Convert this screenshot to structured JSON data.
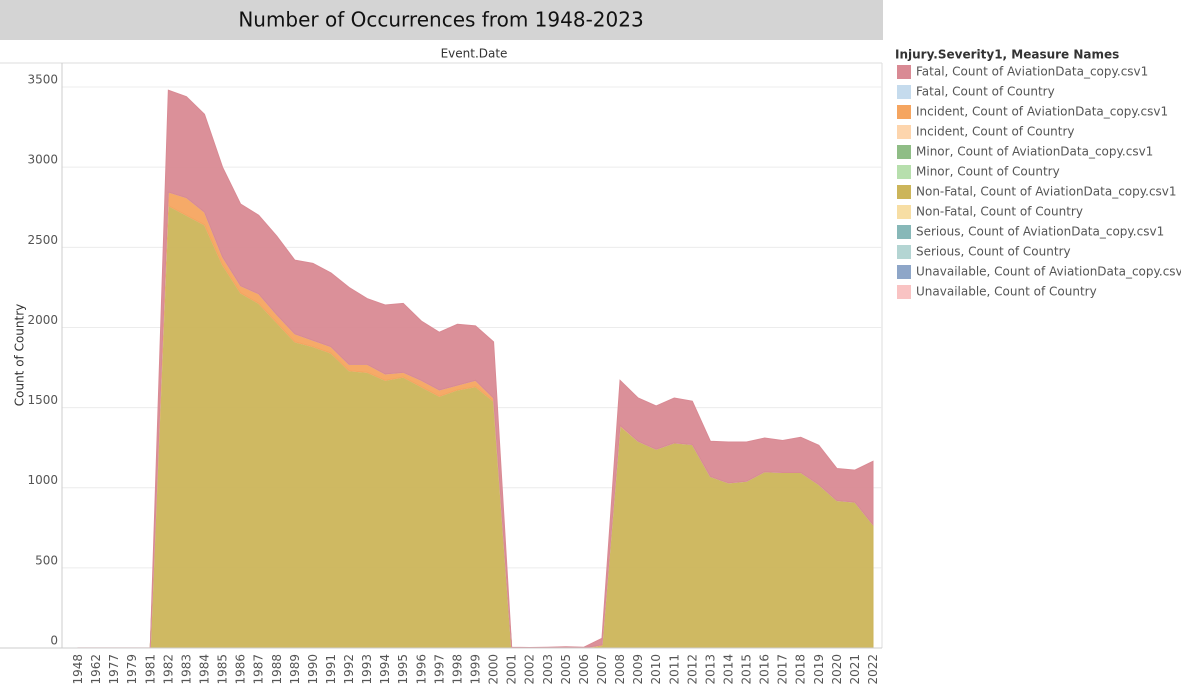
{
  "chart_data": {
    "type": "stacked-area",
    "title": "Number of Occurrences from 1948-2023",
    "header": "Event.Date",
    "y_label": "Count of Country",
    "legend_title": "Injury.Severity1, Measure Names",
    "categories": [
      "1948",
      "1962",
      "1977",
      "1979",
      "1981",
      "1982",
      "1983",
      "1984",
      "1985",
      "1986",
      "1987",
      "1988",
      "1989",
      "1990",
      "1991",
      "1992",
      "1993",
      "1994",
      "1995",
      "1996",
      "1997",
      "1998",
      "1999",
      "2000",
      "2001",
      "2002",
      "2003",
      "2005",
      "2006",
      "2007",
      "2008",
      "2009",
      "2010",
      "2011",
      "2012",
      "2013",
      "2014",
      "2015",
      "2016",
      "2017",
      "2018",
      "2019",
      "2020",
      "2021",
      "2022"
    ],
    "ylim": [
      0,
      3650
    ],
    "yticks": [
      0,
      500,
      1000,
      1500,
      2000,
      2500,
      3000,
      3500
    ],
    "grid": true,
    "series": [
      {
        "name": "Fatal, Count of AviationData_copy.csv1",
        "color": "#d98a94",
        "values": [
          1,
          1,
          1,
          1,
          1,
          635,
          630,
          610,
          560,
          510,
          490,
          490,
          460,
          480,
          460,
          480,
          410,
          430,
          430,
          370,
          360,
          380,
          340,
          350,
          5,
          3,
          5,
          8,
          5,
          40,
          280,
          270,
          270,
          280,
          270,
          220,
          255,
          245,
          210,
          200,
          220,
          245,
          200,
          200,
          395
        ]
      },
      {
        "name": "Fatal, Count of Country",
        "color": "#c5dbed",
        "values": [
          0,
          0,
          0,
          0,
          0,
          0,
          0,
          0,
          0,
          0,
          0,
          0,
          0,
          0,
          0,
          0,
          0,
          0,
          0,
          0,
          0,
          0,
          0,
          0,
          0,
          0,
          0,
          0,
          0,
          0,
          0,
          0,
          0,
          0,
          0,
          0,
          0,
          0,
          0,
          0,
          0,
          0,
          0,
          0,
          0
        ]
      },
      {
        "name": "Incident, Count of AviationData_copy.csv1",
        "color": "#f5a560",
        "values": [
          0,
          0,
          0,
          0,
          0,
          85,
          110,
          80,
          50,
          45,
          60,
          50,
          50,
          40,
          40,
          40,
          50,
          40,
          30,
          40,
          40,
          30,
          40,
          20,
          0,
          0,
          0,
          0,
          0,
          5,
          5,
          0,
          0,
          0,
          0,
          0,
          0,
          0,
          0,
          0,
          0,
          0,
          0,
          0,
          0
        ]
      },
      {
        "name": "Incident, Count of Country",
        "color": "#fdd5ad",
        "values": [
          0,
          0,
          0,
          0,
          0,
          0,
          0,
          0,
          0,
          0,
          0,
          0,
          0,
          0,
          0,
          0,
          0,
          0,
          0,
          0,
          0,
          0,
          0,
          0,
          0,
          0,
          0,
          0,
          0,
          0,
          0,
          0,
          0,
          0,
          0,
          0,
          0,
          0,
          0,
          0,
          0,
          0,
          0,
          0,
          0
        ]
      },
      {
        "name": "Minor, Count of AviationData_copy.csv1",
        "color": "#8fbd86",
        "values": [
          0,
          0,
          0,
          0,
          0,
          0,
          0,
          0,
          0,
          0,
          0,
          0,
          0,
          0,
          0,
          0,
          0,
          0,
          0,
          0,
          0,
          0,
          0,
          0,
          0,
          0,
          0,
          0,
          0,
          0,
          0,
          0,
          0,
          0,
          0,
          0,
          0,
          0,
          0,
          0,
          0,
          0,
          0,
          0,
          0
        ]
      },
      {
        "name": "Minor, Count of Country",
        "color": "#b7dfad",
        "values": [
          0,
          0,
          0,
          0,
          0,
          0,
          0,
          0,
          0,
          0,
          0,
          0,
          0,
          0,
          0,
          0,
          0,
          0,
          0,
          0,
          0,
          0,
          0,
          0,
          0,
          0,
          0,
          0,
          0,
          0,
          0,
          0,
          0,
          0,
          0,
          0,
          0,
          0,
          0,
          0,
          0,
          0,
          0,
          0,
          0
        ]
      },
      {
        "name": "Non-Fatal, Count of AviationData_copy.csv1",
        "color": "#ccb55a",
        "values": [
          0,
          0,
          0,
          0,
          0,
          2760,
          2700,
          2640,
          2390,
          2215,
          2150,
          2030,
          1910,
          1880,
          1840,
          1730,
          1720,
          1670,
          1690,
          1630,
          1570,
          1610,
          1630,
          1540,
          0,
          0,
          0,
          0,
          0,
          15,
          1385,
          1290,
          1240,
          1280,
          1270,
          1070,
          1030,
          1040,
          1100,
          1095,
          1095,
          1020,
          920,
          910,
          770
        ]
      },
      {
        "name": "Non-Fatal, Count of Country",
        "color": "#f7dea4",
        "values": [
          0,
          0,
          0,
          0,
          0,
          0,
          0,
          0,
          0,
          0,
          0,
          0,
          0,
          0,
          0,
          0,
          0,
          0,
          0,
          0,
          0,
          0,
          0,
          0,
          0,
          0,
          0,
          0,
          0,
          0,
          0,
          0,
          0,
          0,
          0,
          0,
          0,
          0,
          0,
          0,
          0,
          0,
          0,
          0,
          0
        ]
      },
      {
        "name": "Serious, Count of AviationData_copy.csv1",
        "color": "#87b8b8",
        "values": [
          0,
          0,
          0,
          0,
          0,
          0,
          0,
          0,
          0,
          0,
          0,
          0,
          0,
          0,
          0,
          0,
          0,
          0,
          0,
          0,
          0,
          0,
          0,
          0,
          0,
          0,
          0,
          0,
          0,
          0,
          0,
          0,
          0,
          0,
          0,
          0,
          0,
          0,
          0,
          0,
          0,
          0,
          0,
          0,
          0
        ]
      },
      {
        "name": "Serious, Count of Country",
        "color": "#b4d5d3",
        "values": [
          0,
          0,
          0,
          0,
          0,
          0,
          0,
          0,
          0,
          0,
          0,
          0,
          0,
          0,
          0,
          0,
          0,
          0,
          0,
          0,
          0,
          0,
          0,
          0,
          0,
          0,
          0,
          0,
          0,
          0,
          0,
          0,
          0,
          0,
          0,
          0,
          0,
          0,
          0,
          0,
          0,
          0,
          0,
          0,
          0
        ]
      },
      {
        "name": "Unavailable, Count of AviationData_copy.csv1",
        "color": "#8ea6c8",
        "values": [
          0,
          0,
          0,
          0,
          0,
          0,
          0,
          0,
          0,
          0,
          0,
          0,
          0,
          0,
          0,
          0,
          0,
          0,
          0,
          0,
          0,
          0,
          0,
          0,
          0,
          0,
          0,
          0,
          0,
          0,
          0,
          0,
          0,
          0,
          0,
          0,
          0,
          0,
          0,
          0,
          0,
          0,
          0,
          0,
          0
        ]
      },
      {
        "name": "Unavailable, Count of Country",
        "color": "#f9c3c3",
        "values": [
          0,
          0,
          0,
          0,
          0,
          0,
          0,
          0,
          0,
          0,
          0,
          0,
          0,
          0,
          0,
          0,
          0,
          0,
          0,
          0,
          0,
          0,
          0,
          0,
          0,
          0,
          0,
          0,
          0,
          0,
          0,
          0,
          0,
          0,
          0,
          0,
          0,
          0,
          0,
          0,
          0,
          0,
          0,
          0,
          0
        ]
      }
    ]
  }
}
